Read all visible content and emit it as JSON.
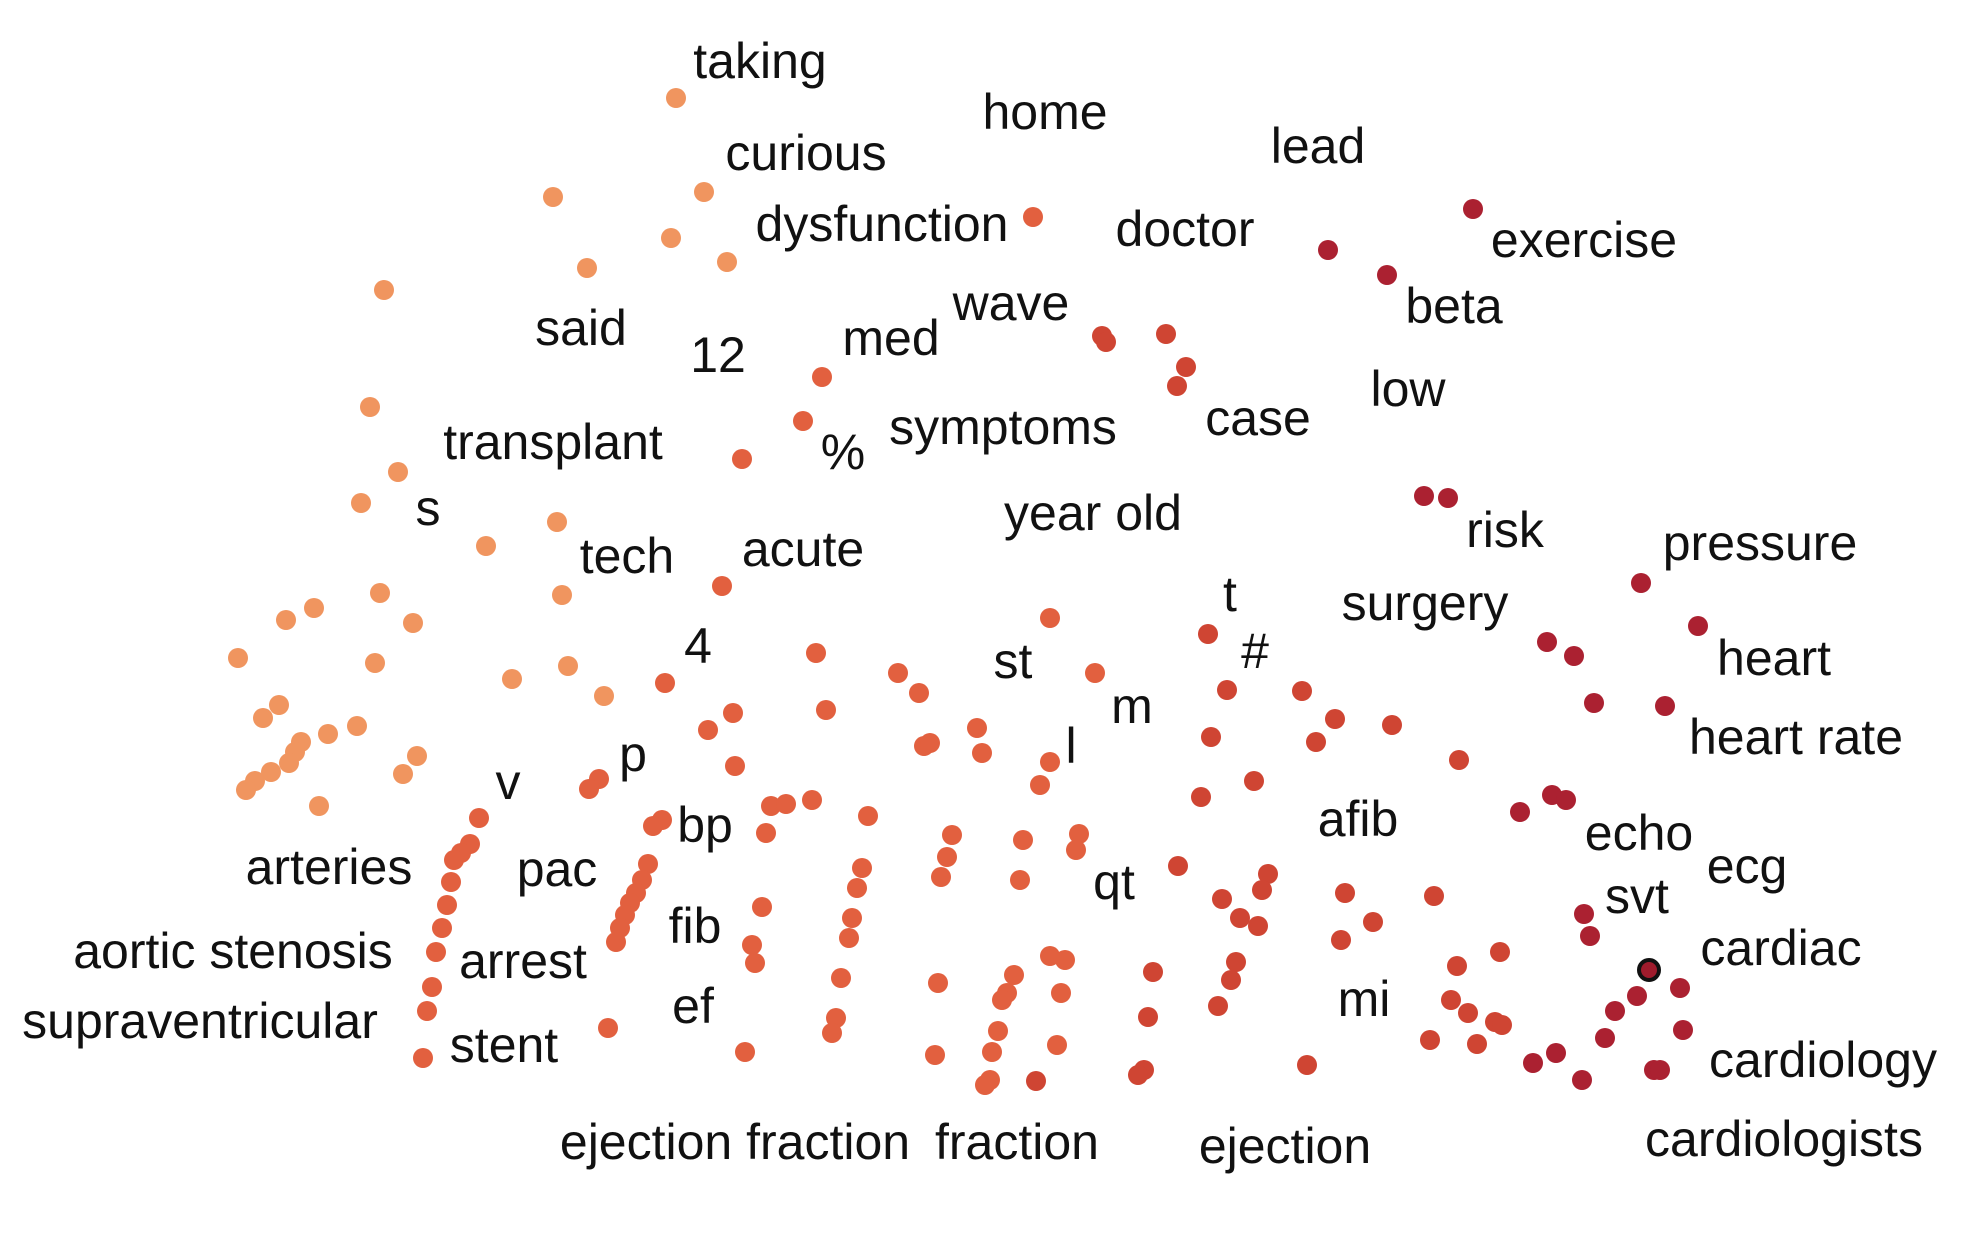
{
  "chart_data": {
    "type": "scatter",
    "title": "",
    "xlabel": "",
    "ylabel": "",
    "grid": false,
    "axes_visible": false,
    "legend": "none",
    "color_scale": [
      "#f0955f",
      "#e2603f",
      "#cf4533",
      "#ab2131",
      "#9e1b2c"
    ],
    "highlight_color": "#111111",
    "xlim": [
      0,
      1988
    ],
    "ylim": [
      0,
      1250
    ],
    "labels": [
      {
        "text": "taking",
        "x": 760,
        "y": 65
      },
      {
        "text": "home",
        "x": 1045,
        "y": 116
      },
      {
        "text": "lead",
        "x": 1318,
        "y": 150
      },
      {
        "text": "curious",
        "x": 806,
        "y": 157
      },
      {
        "text": "dysfunction",
        "x": 882,
        "y": 228
      },
      {
        "text": "doctor",
        "x": 1185,
        "y": 233
      },
      {
        "text": "exercise",
        "x": 1584,
        "y": 244
      },
      {
        "text": "beta",
        "x": 1454,
        "y": 310
      },
      {
        "text": "said",
        "x": 581,
        "y": 332
      },
      {
        "text": "wave",
        "x": 1011,
        "y": 307
      },
      {
        "text": "med",
        "x": 891,
        "y": 342
      },
      {
        "text": "12",
        "x": 718,
        "y": 359
      },
      {
        "text": "low",
        "x": 1408,
        "y": 393
      },
      {
        "text": "case",
        "x": 1258,
        "y": 422
      },
      {
        "text": "symptoms",
        "x": 1003,
        "y": 431
      },
      {
        "text": "transplant",
        "x": 553,
        "y": 446
      },
      {
        "text": "%",
        "x": 843,
        "y": 456
      },
      {
        "text": "year old",
        "x": 1093,
        "y": 517
      },
      {
        "text": "s",
        "x": 428,
        "y": 512
      },
      {
        "text": "risk",
        "x": 1505,
        "y": 534
      },
      {
        "text": "pressure",
        "x": 1760,
        "y": 547
      },
      {
        "text": "tech",
        "x": 627,
        "y": 560
      },
      {
        "text": "acute",
        "x": 803,
        "y": 553
      },
      {
        "text": "t",
        "x": 1230,
        "y": 598
      },
      {
        "text": "surgery",
        "x": 1425,
        "y": 607
      },
      {
        "text": "heart",
        "x": 1774,
        "y": 662
      },
      {
        "text": "4",
        "x": 698,
        "y": 650
      },
      {
        "text": "#",
        "x": 1255,
        "y": 655
      },
      {
        "text": "st",
        "x": 1013,
        "y": 665
      },
      {
        "text": "m",
        "x": 1132,
        "y": 710
      },
      {
        "text": "heart rate",
        "x": 1796,
        "y": 741
      },
      {
        "text": "l",
        "x": 1071,
        "y": 750
      },
      {
        "text": "p",
        "x": 633,
        "y": 758
      },
      {
        "text": "v",
        "x": 508,
        "y": 786
      },
      {
        "text": "bp",
        "x": 705,
        "y": 829
      },
      {
        "text": "afib",
        "x": 1358,
        "y": 823
      },
      {
        "text": "echo",
        "x": 1639,
        "y": 837
      },
      {
        "text": "ecg",
        "x": 1747,
        "y": 870
      },
      {
        "text": "arteries",
        "x": 329,
        "y": 871
      },
      {
        "text": "pac",
        "x": 557,
        "y": 873
      },
      {
        "text": "qt",
        "x": 1114,
        "y": 886
      },
      {
        "text": "svt",
        "x": 1637,
        "y": 900
      },
      {
        "text": "fib",
        "x": 695,
        "y": 930
      },
      {
        "text": "cardiac",
        "x": 1781,
        "y": 952
      },
      {
        "text": "aortic stenosis",
        "x": 233,
        "y": 955
      },
      {
        "text": "arrest",
        "x": 523,
        "y": 965
      },
      {
        "text": "mi",
        "x": 1364,
        "y": 1003
      },
      {
        "text": "supraventricular",
        "x": 200,
        "y": 1025
      },
      {
        "text": "ef",
        "x": 693,
        "y": 1010
      },
      {
        "text": "stent",
        "x": 504,
        "y": 1049
      },
      {
        "text": "cardiology",
        "x": 1823,
        "y": 1064
      },
      {
        "text": "cardiologists",
        "x": 1784,
        "y": 1143
      },
      {
        "text": "ejection fraction",
        "x": 735,
        "y": 1146
      },
      {
        "text": "fraction",
        "x": 1017,
        "y": 1146
      },
      {
        "text": "ejection",
        "x": 1285,
        "y": 1150
      }
    ],
    "points": [
      {
        "x": 676,
        "y": 98,
        "c": 0
      },
      {
        "x": 553,
        "y": 197,
        "c": 0
      },
      {
        "x": 704,
        "y": 192,
        "c": 0
      },
      {
        "x": 671,
        "y": 238,
        "c": 0
      },
      {
        "x": 587,
        "y": 268,
        "c": 0
      },
      {
        "x": 727,
        "y": 262,
        "c": 0
      },
      {
        "x": 384,
        "y": 290,
        "c": 0
      },
      {
        "x": 370,
        "y": 407,
        "c": 0
      },
      {
        "x": 398,
        "y": 472,
        "c": 0
      },
      {
        "x": 361,
        "y": 503,
        "c": 0
      },
      {
        "x": 486,
        "y": 546,
        "c": 0
      },
      {
        "x": 557,
        "y": 522,
        "c": 0
      },
      {
        "x": 742,
        "y": 459,
        "c": 1
      },
      {
        "x": 803,
        "y": 421,
        "c": 1
      },
      {
        "x": 822,
        "y": 377,
        "c": 1
      },
      {
        "x": 380,
        "y": 593,
        "c": 0
      },
      {
        "x": 314,
        "y": 608,
        "c": 0
      },
      {
        "x": 286,
        "y": 620,
        "c": 0
      },
      {
        "x": 413,
        "y": 623,
        "c": 0
      },
      {
        "x": 562,
        "y": 595,
        "c": 0
      },
      {
        "x": 238,
        "y": 658,
        "c": 0
      },
      {
        "x": 375,
        "y": 663,
        "c": 0
      },
      {
        "x": 568,
        "y": 666,
        "c": 0
      },
      {
        "x": 512,
        "y": 679,
        "c": 0
      },
      {
        "x": 604,
        "y": 696,
        "c": 0
      },
      {
        "x": 665,
        "y": 683,
        "c": 1
      },
      {
        "x": 722,
        "y": 586,
        "c": 1
      },
      {
        "x": 279,
        "y": 705,
        "c": 0
      },
      {
        "x": 263,
        "y": 718,
        "c": 0
      },
      {
        "x": 357,
        "y": 726,
        "c": 0
      },
      {
        "x": 328,
        "y": 734,
        "c": 0
      },
      {
        "x": 301,
        "y": 742,
        "c": 0
      },
      {
        "x": 295,
        "y": 752,
        "c": 0
      },
      {
        "x": 289,
        "y": 763,
        "c": 0
      },
      {
        "x": 271,
        "y": 772,
        "c": 0
      },
      {
        "x": 255,
        "y": 781,
        "c": 0
      },
      {
        "x": 246,
        "y": 790,
        "c": 0
      },
      {
        "x": 417,
        "y": 756,
        "c": 0
      },
      {
        "x": 403,
        "y": 774,
        "c": 0
      },
      {
        "x": 319,
        "y": 806,
        "c": 0
      },
      {
        "x": 708,
        "y": 730,
        "c": 1
      },
      {
        "x": 733,
        "y": 713,
        "c": 1
      },
      {
        "x": 735,
        "y": 766,
        "c": 1
      },
      {
        "x": 826,
        "y": 710,
        "c": 1
      },
      {
        "x": 816,
        "y": 653,
        "c": 1
      },
      {
        "x": 599,
        "y": 779,
        "c": 1
      },
      {
        "x": 589,
        "y": 789,
        "c": 1
      },
      {
        "x": 898,
        "y": 673,
        "c": 1
      },
      {
        "x": 919,
        "y": 693,
        "c": 1
      },
      {
        "x": 924,
        "y": 746,
        "c": 1
      },
      {
        "x": 930,
        "y": 743,
        "c": 1
      },
      {
        "x": 1050,
        "y": 618,
        "c": 1
      },
      {
        "x": 1095,
        "y": 673,
        "c": 1
      },
      {
        "x": 977,
        "y": 728,
        "c": 1
      },
      {
        "x": 982,
        "y": 753,
        "c": 1
      },
      {
        "x": 1050,
        "y": 762,
        "c": 1
      },
      {
        "x": 1040,
        "y": 785,
        "c": 1
      },
      {
        "x": 1036,
        "y": 1081,
        "c": 2
      },
      {
        "x": 479,
        "y": 818,
        "c": 1
      },
      {
        "x": 470,
        "y": 844,
        "c": 1
      },
      {
        "x": 461,
        "y": 853,
        "c": 1
      },
      {
        "x": 454,
        "y": 860,
        "c": 1
      },
      {
        "x": 451,
        "y": 882,
        "c": 1
      },
      {
        "x": 447,
        "y": 905,
        "c": 1
      },
      {
        "x": 442,
        "y": 928,
        "c": 1
      },
      {
        "x": 436,
        "y": 952,
        "c": 1
      },
      {
        "x": 432,
        "y": 987,
        "c": 1
      },
      {
        "x": 427,
        "y": 1011,
        "c": 1
      },
      {
        "x": 423,
        "y": 1058,
        "c": 1
      },
      {
        "x": 608,
        "y": 1028,
        "c": 1
      },
      {
        "x": 662,
        "y": 820,
        "c": 1
      },
      {
        "x": 653,
        "y": 826,
        "c": 1
      },
      {
        "x": 648,
        "y": 864,
        "c": 1
      },
      {
        "x": 642,
        "y": 880,
        "c": 1
      },
      {
        "x": 636,
        "y": 893,
        "c": 1
      },
      {
        "x": 630,
        "y": 903,
        "c": 1
      },
      {
        "x": 625,
        "y": 915,
        "c": 1
      },
      {
        "x": 620,
        "y": 928,
        "c": 1
      },
      {
        "x": 616,
        "y": 942,
        "c": 1
      },
      {
        "x": 771,
        "y": 806,
        "c": 1
      },
      {
        "x": 786,
        "y": 804,
        "c": 1
      },
      {
        "x": 766,
        "y": 833,
        "c": 1
      },
      {
        "x": 812,
        "y": 800,
        "c": 1
      },
      {
        "x": 868,
        "y": 816,
        "c": 1
      },
      {
        "x": 862,
        "y": 868,
        "c": 1
      },
      {
        "x": 857,
        "y": 888,
        "c": 1
      },
      {
        "x": 762,
        "y": 907,
        "c": 1
      },
      {
        "x": 752,
        "y": 945,
        "c": 1
      },
      {
        "x": 755,
        "y": 963,
        "c": 1
      },
      {
        "x": 745,
        "y": 1052,
        "c": 1
      },
      {
        "x": 852,
        "y": 918,
        "c": 1
      },
      {
        "x": 849,
        "y": 938,
        "c": 1
      },
      {
        "x": 841,
        "y": 978,
        "c": 1
      },
      {
        "x": 836,
        "y": 1018,
        "c": 1
      },
      {
        "x": 832,
        "y": 1033,
        "c": 1
      },
      {
        "x": 952,
        "y": 835,
        "c": 1
      },
      {
        "x": 947,
        "y": 857,
        "c": 1
      },
      {
        "x": 941,
        "y": 877,
        "c": 1
      },
      {
        "x": 1023,
        "y": 840,
        "c": 1
      },
      {
        "x": 1020,
        "y": 880,
        "c": 1
      },
      {
        "x": 938,
        "y": 983,
        "c": 1
      },
      {
        "x": 935,
        "y": 1055,
        "c": 1
      },
      {
        "x": 1014,
        "y": 975,
        "c": 1
      },
      {
        "x": 1007,
        "y": 993,
        "c": 1
      },
      {
        "x": 1002,
        "y": 1000,
        "c": 1
      },
      {
        "x": 998,
        "y": 1031,
        "c": 1
      },
      {
        "x": 992,
        "y": 1052,
        "c": 1
      },
      {
        "x": 990,
        "y": 1080,
        "c": 1
      },
      {
        "x": 985,
        "y": 1085,
        "c": 1
      },
      {
        "x": 1065,
        "y": 960,
        "c": 1
      },
      {
        "x": 1061,
        "y": 993,
        "c": 1
      },
      {
        "x": 1057,
        "y": 1045,
        "c": 1
      },
      {
        "x": 1079,
        "y": 834,
        "c": 1
      },
      {
        "x": 1076,
        "y": 850,
        "c": 1
      },
      {
        "x": 1050,
        "y": 956,
        "c": 1
      },
      {
        "x": 1153,
        "y": 972,
        "c": 2
      },
      {
        "x": 1148,
        "y": 1017,
        "c": 2
      },
      {
        "x": 1144,
        "y": 1070,
        "c": 2
      },
      {
        "x": 1138,
        "y": 1075,
        "c": 2
      },
      {
        "x": 1178,
        "y": 866,
        "c": 2
      },
      {
        "x": 1208,
        "y": 634,
        "c": 2
      },
      {
        "x": 1227,
        "y": 690,
        "c": 2
      },
      {
        "x": 1211,
        "y": 737,
        "c": 2
      },
      {
        "x": 1201,
        "y": 797,
        "c": 2
      },
      {
        "x": 1254,
        "y": 781,
        "c": 2
      },
      {
        "x": 1268,
        "y": 874,
        "c": 2
      },
      {
        "x": 1262,
        "y": 890,
        "c": 2
      },
      {
        "x": 1222,
        "y": 899,
        "c": 2
      },
      {
        "x": 1240,
        "y": 918,
        "c": 2
      },
      {
        "x": 1258,
        "y": 926,
        "c": 2
      },
      {
        "x": 1236,
        "y": 962,
        "c": 2
      },
      {
        "x": 1231,
        "y": 980,
        "c": 2
      },
      {
        "x": 1218,
        "y": 1006,
        "c": 2
      },
      {
        "x": 1302,
        "y": 691,
        "c": 2
      },
      {
        "x": 1335,
        "y": 719,
        "c": 2
      },
      {
        "x": 1316,
        "y": 742,
        "c": 2
      },
      {
        "x": 1392,
        "y": 725,
        "c": 2
      },
      {
        "x": 1345,
        "y": 893,
        "c": 2
      },
      {
        "x": 1373,
        "y": 922,
        "c": 2
      },
      {
        "x": 1341,
        "y": 940,
        "c": 2
      },
      {
        "x": 1307,
        "y": 1065,
        "c": 2
      },
      {
        "x": 1434,
        "y": 896,
        "c": 2
      },
      {
        "x": 1459,
        "y": 760,
        "c": 2
      },
      {
        "x": 1457,
        "y": 966,
        "c": 2
      },
      {
        "x": 1451,
        "y": 1000,
        "c": 2
      },
      {
        "x": 1468,
        "y": 1013,
        "c": 2
      },
      {
        "x": 1495,
        "y": 1022,
        "c": 2
      },
      {
        "x": 1502,
        "y": 1025,
        "c": 2
      },
      {
        "x": 1430,
        "y": 1040,
        "c": 2
      },
      {
        "x": 1477,
        "y": 1044,
        "c": 2
      },
      {
        "x": 1500,
        "y": 952,
        "c": 2
      },
      {
        "x": 1102,
        "y": 336,
        "c": 2
      },
      {
        "x": 1106,
        "y": 342,
        "c": 2
      },
      {
        "x": 1166,
        "y": 334,
        "c": 2
      },
      {
        "x": 1186,
        "y": 367,
        "c": 2
      },
      {
        "x": 1177,
        "y": 386,
        "c": 2
      },
      {
        "x": 1033,
        "y": 217,
        "c": 1
      },
      {
        "x": 1328,
        "y": 250,
        "c": 3
      },
      {
        "x": 1387,
        "y": 275,
        "c": 3
      },
      {
        "x": 1473,
        "y": 209,
        "c": 3
      },
      {
        "x": 1424,
        "y": 496,
        "c": 3
      },
      {
        "x": 1448,
        "y": 498,
        "c": 3
      },
      {
        "x": 1547,
        "y": 642,
        "c": 3
      },
      {
        "x": 1574,
        "y": 656,
        "c": 3
      },
      {
        "x": 1594,
        "y": 703,
        "c": 3
      },
      {
        "x": 1641,
        "y": 583,
        "c": 3
      },
      {
        "x": 1698,
        "y": 626,
        "c": 3
      },
      {
        "x": 1665,
        "y": 706,
        "c": 3
      },
      {
        "x": 1520,
        "y": 812,
        "c": 3
      },
      {
        "x": 1552,
        "y": 795,
        "c": 3
      },
      {
        "x": 1566,
        "y": 800,
        "c": 3
      },
      {
        "x": 1584,
        "y": 914,
        "c": 3
      },
      {
        "x": 1590,
        "y": 936,
        "c": 3
      },
      {
        "x": 1680,
        "y": 988,
        "c": 3
      },
      {
        "x": 1637,
        "y": 996,
        "c": 3
      },
      {
        "x": 1615,
        "y": 1011,
        "c": 3
      },
      {
        "x": 1683,
        "y": 1030,
        "c": 3
      },
      {
        "x": 1605,
        "y": 1038,
        "c": 3
      },
      {
        "x": 1556,
        "y": 1053,
        "c": 3
      },
      {
        "x": 1533,
        "y": 1063,
        "c": 3
      },
      {
        "x": 1582,
        "y": 1080,
        "c": 3
      },
      {
        "x": 1654,
        "y": 1070,
        "c": 3
      },
      {
        "x": 1660,
        "y": 1070,
        "c": 3
      },
      {
        "x": 1649,
        "y": 970,
        "c": 4,
        "highlight": true
      }
    ]
  }
}
